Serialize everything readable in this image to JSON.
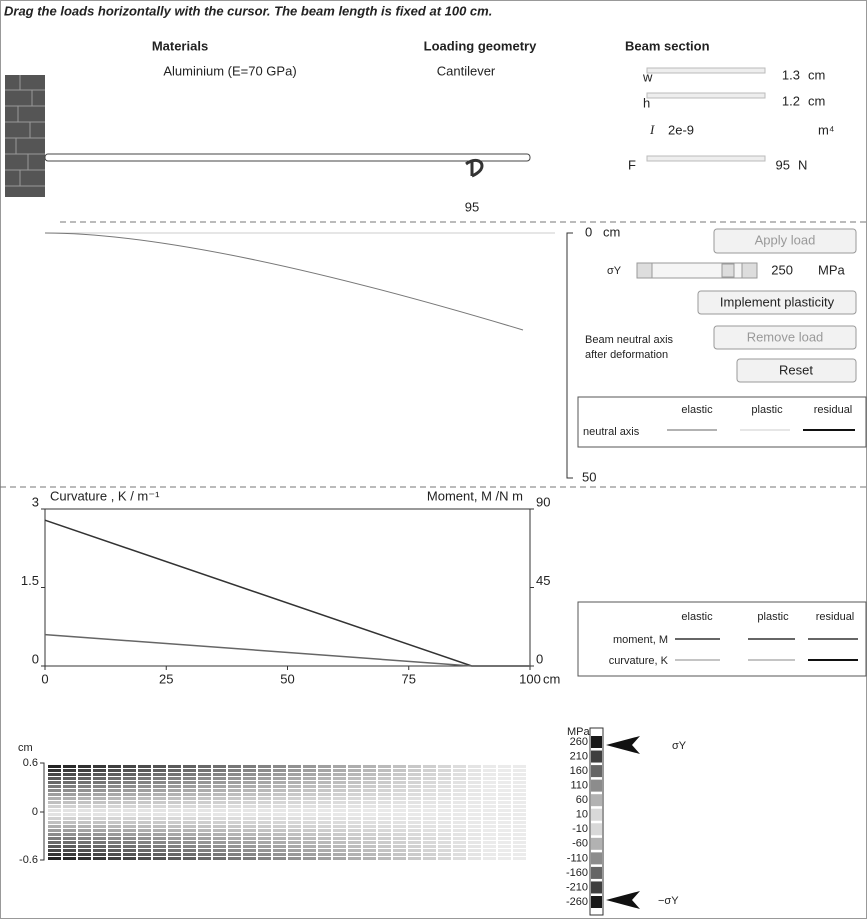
{
  "instruction": "Drag the loads horizontally with the cursor. The beam length is fixed at 100 cm.",
  "materials": {
    "label": "Materials",
    "value": "Aluminium (E=70 GPa)"
  },
  "loading_geometry": {
    "label": "Loading geometry",
    "value": "Cantilever"
  },
  "beam_section": {
    "label": "Beam section",
    "fields": [
      {
        "name": "w",
        "value": "1.3",
        "unit": "cm"
      },
      {
        "name": "h",
        "value": "1.2",
        "unit": "cm"
      },
      {
        "name": "I",
        "value": "2e-9",
        "unit": "m⁴"
      },
      {
        "name": "F",
        "value": "95",
        "unit": "N"
      }
    ]
  },
  "load_marker": "95",
  "deflection_axis": {
    "top": "0",
    "unit": "cm",
    "bottom": "50"
  },
  "controls": {
    "apply_load": "Apply load",
    "sigma_label": "σY",
    "sigma_value": "250",
    "sigma_unit": "MPa",
    "implement_plasticity": "Implement plasticity",
    "remove_load": "Remove load",
    "reset": "Reset",
    "neutral_axis_note": [
      "Beam neutral axis",
      "after deformation"
    ]
  },
  "legend_top": {
    "columns": [
      "elastic",
      "plastic",
      "residual"
    ],
    "rows": [
      "neutral axis"
    ]
  },
  "plot": {
    "y_label": "Curvature , Κ / m⁻¹",
    "y2_label": "Moment, M /N m",
    "x_unit": "cm",
    "xlim": [
      0,
      100
    ],
    "ylim": [
      0,
      3
    ],
    "y2lim": [
      0,
      90
    ],
    "xticks": [
      0,
      25,
      50,
      75,
      100
    ],
    "yticks": [
      0,
      1.5,
      3
    ],
    "y2ticks": [
      0,
      45,
      90
    ],
    "series": [
      {
        "name": "moment, M",
        "axis": "y2",
        "color": "#333333",
        "x": [
          0,
          88,
          100
        ],
        "values": [
          83.6,
          0,
          0
        ]
      },
      {
        "name": "curvature, Κ",
        "color": "#666666",
        "x": [
          0,
          88,
          100
        ],
        "values": [
          0.6,
          0,
          0
        ]
      }
    ]
  },
  "legend_bottom": {
    "columns": [
      "elastic",
      "plastic",
      "residual"
    ]
  },
  "stress_map": {
    "unit": "cm",
    "ticks": [
      "0.6",
      "0",
      "-0.6"
    ]
  },
  "stress_scale": {
    "unit": "MPa",
    "labels": [
      "260",
      "210",
      "160",
      "110",
      "60",
      "10",
      "-10",
      "-60",
      "-110",
      "-160",
      "-210",
      "-260"
    ],
    "markers": [
      "σY",
      "−σY"
    ]
  }
}
